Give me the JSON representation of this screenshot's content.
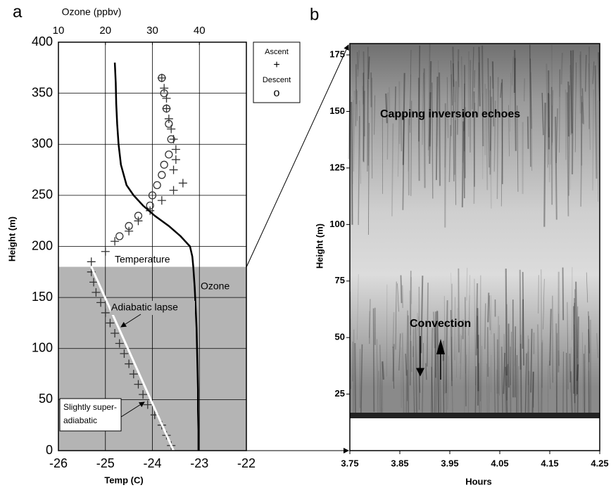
{
  "chart_data": [
    {
      "type": "profile",
      "panel_label": "a",
      "x_label": "Temp (C)",
      "x2_label": "Ozone (ppbv)",
      "y_label": "Height (m)",
      "xlim": [
        -26,
        -22
      ],
      "xticks": [
        -26,
        -25,
        -24,
        -23,
        -22
      ],
      "x2lim": [
        10,
        50
      ],
      "x2ticks": [
        10,
        20,
        30,
        40
      ],
      "ylim": [
        0,
        400
      ],
      "yticks": [
        0,
        50,
        100,
        150,
        200,
        250,
        300,
        350,
        400
      ],
      "grid": true,
      "shade_ylim": [
        0,
        180
      ],
      "shade_color": "#b4b4b4",
      "series": [
        {
          "name": "Ascent",
          "marker": "+",
          "color": "#333333",
          "x": [
            -23.6,
            -23.7,
            -23.8,
            -23.95,
            -24.1,
            -24.2,
            -24.3,
            -24.4,
            -24.5,
            -24.6,
            -24.7,
            -24.8,
            -24.9,
            -25.0,
            -25.1,
            -25.2,
            -25.25,
            -25.3,
            -25.3,
            -25.0,
            -24.8,
            -24.5,
            -24.3,
            -24.05,
            -23.8,
            -23.55,
            -23.35,
            -23.55,
            -23.5,
            -23.5,
            -23.55,
            -23.6,
            -23.65,
            -23.7,
            -23.7,
            -23.75,
            -23.8
          ],
          "y": [
            5,
            15,
            25,
            35,
            45,
            55,
            65,
            75,
            85,
            95,
            105,
            115,
            125,
            135,
            145,
            155,
            165,
            175,
            185,
            195,
            205,
            215,
            225,
            235,
            245,
            255,
            262,
            275,
            285,
            295,
            305,
            315,
            325,
            335,
            345,
            355,
            365
          ]
        },
        {
          "name": "Descent",
          "marker": "o",
          "color": "#333333",
          "x": [
            -23.8,
            -23.75,
            -23.7,
            -23.65,
            -23.6,
            -23.65,
            -23.75,
            -23.8,
            -23.9,
            -24.0,
            -24.05,
            -24.3,
            -24.5,
            -24.7
          ],
          "y": [
            365,
            350,
            335,
            320,
            305,
            290,
            280,
            270,
            260,
            250,
            240,
            230,
            220,
            210
          ]
        },
        {
          "marker": "line",
          "axis": "x2",
          "color": "#000000",
          "x": [
            22,
            22.2,
            22.3,
            22.5,
            22.8,
            23.3,
            24.5,
            26,
            28,
            30.5,
            33.5,
            36,
            38,
            38.5,
            38.7,
            39,
            39.2,
            39.4,
            39.5,
            39.6,
            39.7,
            39.7,
            39.8,
            39.8
          ],
          "y": [
            380,
            360,
            340,
            320,
            300,
            280,
            260,
            250,
            240,
            230,
            220,
            210,
            200,
            190,
            180,
            160,
            140,
            120,
            100,
            80,
            60,
            40,
            20,
            0
          ]
        },
        {
          "marker": "line",
          "color": "#ffffff",
          "x": [
            -25.3,
            -23.55
          ],
          "y": [
            180,
            0
          ]
        }
      ],
      "annotations": [
        "Temperature",
        "Ozone",
        "Adiabatic lapse",
        [
          "Slightly super-",
          "adiabatic"
        ]
      ]
    },
    {
      "type": "echogram",
      "panel_label": "b",
      "x_label": "Hours",
      "y_label": "Height (m)",
      "xlim": [
        3.75,
        4.25
      ],
      "xticks": [
        3.75,
        3.85,
        3.95,
        4.05,
        4.15,
        4.25
      ],
      "ylim": [
        0,
        180
      ],
      "yticks": [
        25,
        50,
        75,
        100,
        125,
        150,
        175
      ],
      "annotations": [
        "Capping inversion echoes",
        "Convection"
      ]
    }
  ]
}
